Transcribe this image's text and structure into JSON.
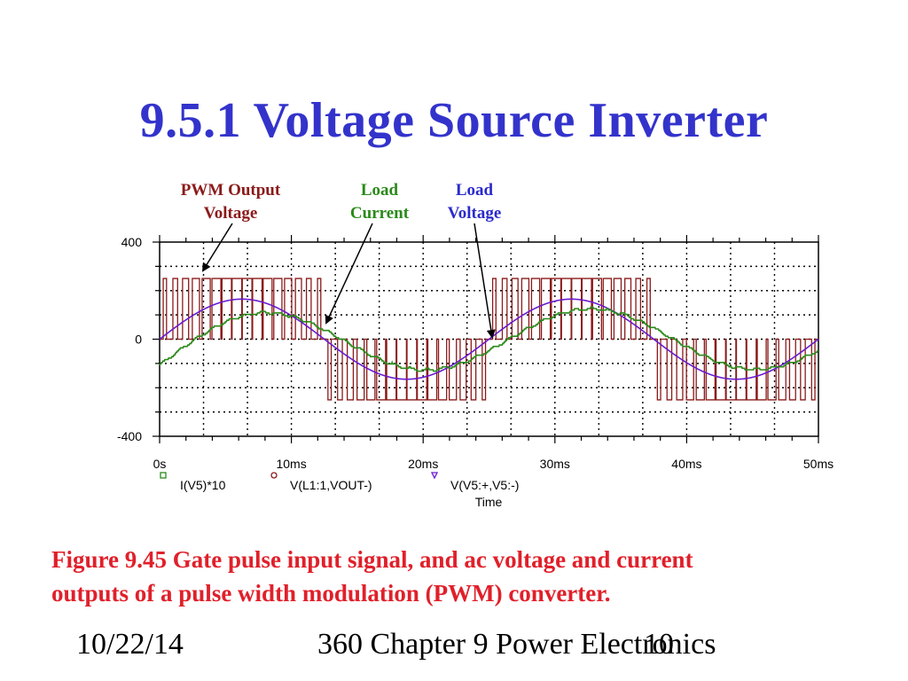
{
  "slide": {
    "title": "9.5.1 Voltage Source Inverter",
    "caption_line1": "Figure 9.45 Gate pulse input signal, and ac voltage and current",
    "caption_line2": "outputs of a pulse width modulation (PWM) converter.",
    "footer_date": "10/22/14",
    "footer_chapter": "360 Chapter 9 Power Electronics",
    "footer_page": "10"
  },
  "annotations": {
    "pwm_line1": "PWM Output",
    "pwm_line2": "Voltage",
    "current_line1": "Load",
    "current_line2": "Current",
    "voltage_line1": "Load",
    "voltage_line2": "Voltage"
  },
  "colors": {
    "title": "#3333cc",
    "caption": "#e0202a",
    "pwm": "#8b1a1a",
    "current": "#2a8a1a",
    "voltage": "#6a1ad0",
    "annotation_pwm": "#8b1a1a",
    "annotation_current": "#2a8a1a",
    "annotation_voltage": "#2a2acc"
  },
  "chart_data": {
    "type": "line",
    "xlabel": "Time",
    "xlim": [
      0,
      50
    ],
    "ylim": [
      -400,
      400
    ],
    "x_ticks": [
      "0s",
      "10ms",
      "20ms",
      "30ms",
      "40ms",
      "50ms"
    ],
    "y_ticks": [
      "400",
      "0",
      "-400"
    ],
    "grid": true,
    "legend_position": "bottom",
    "fundamental_frequency_hz": 40,
    "series": [
      {
        "name": "I(V5)*10",
        "marker": "square",
        "description_values": {
          "amplitude": 125,
          "phase_lag_ms": 1.5,
          "offset_start": -60
        },
        "peak": 125
      },
      {
        "name": "V(L1:1,VOUT-)",
        "marker": "circle",
        "levels": [
          -250,
          0,
          250
        ],
        "carrier_pulses_per_half_cycle": 16
      },
      {
        "name": "V(V5:+,V5:-)",
        "marker": "triangle",
        "peak": 165
      }
    ]
  }
}
